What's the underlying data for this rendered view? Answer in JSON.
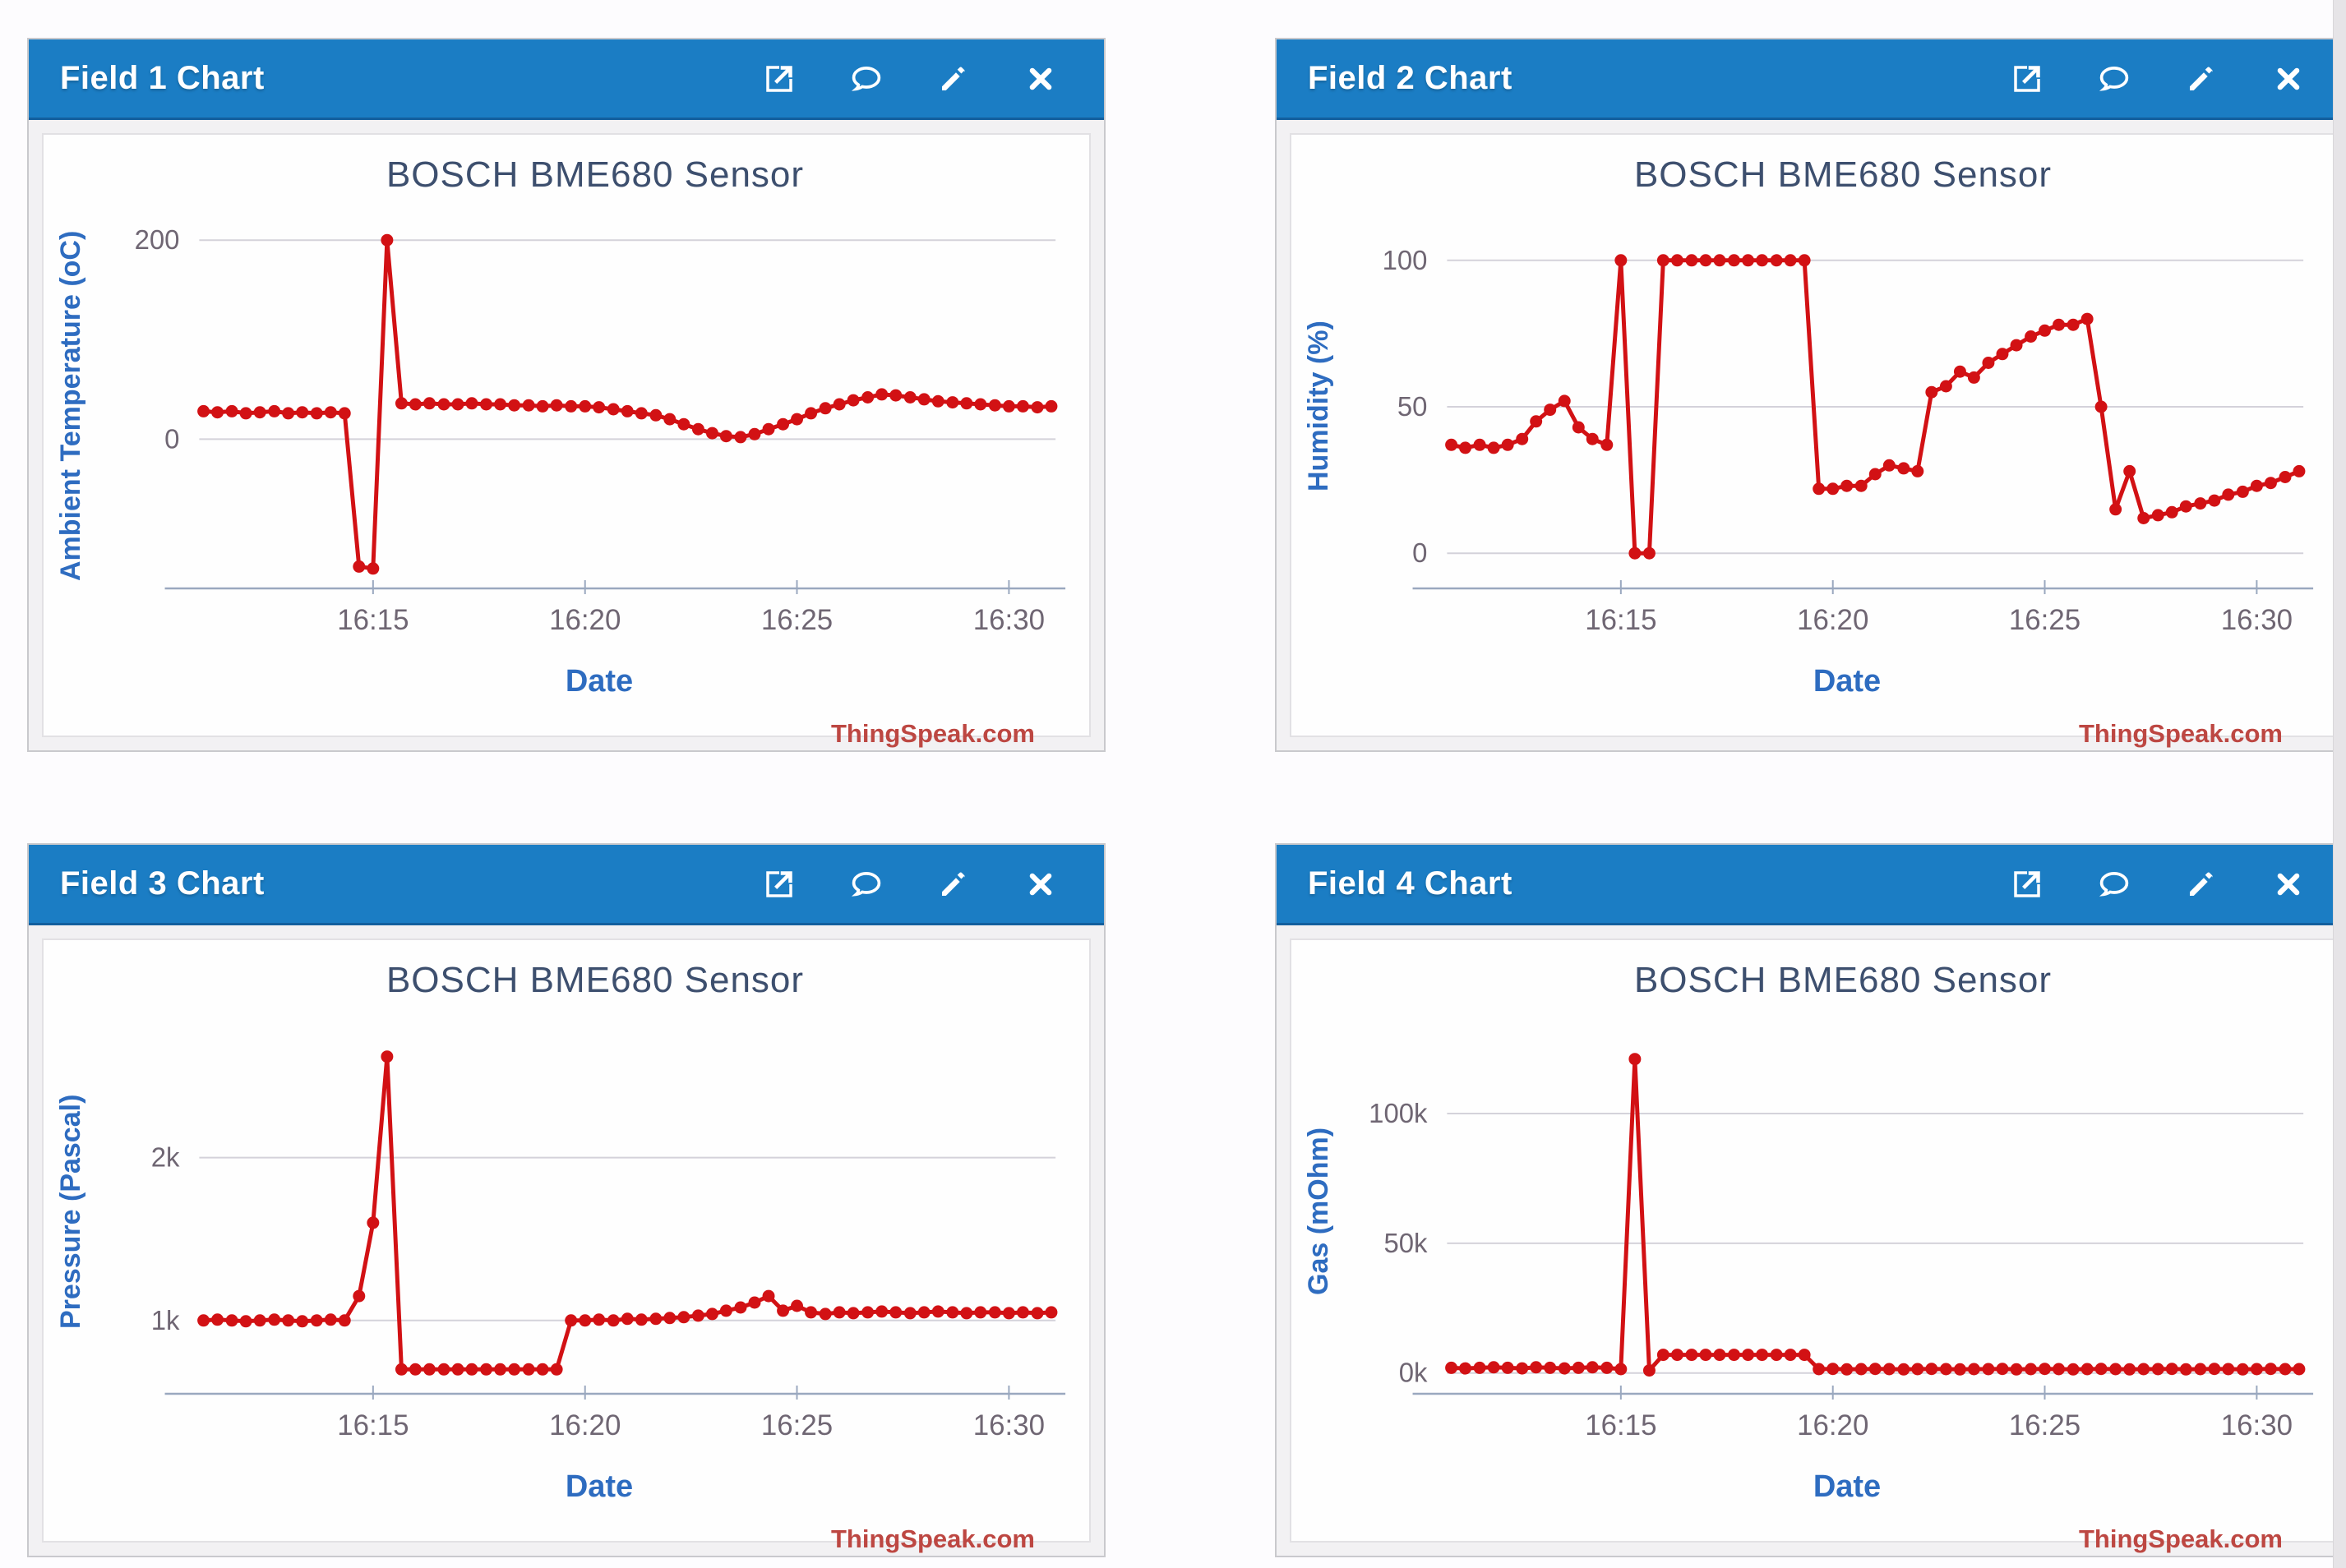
{
  "app": {
    "name": "ThingSpeak channel dashboard"
  },
  "colors": {
    "header_bg": "#1b7dc4",
    "header_border": "#135f9e",
    "series_red": "#d21114",
    "title": "#3d4f6e",
    "axis_label": "#2e6cc0",
    "tick_label": "#6f6673",
    "grid": "#d4d2da",
    "axis_line": "#9aa8bf",
    "watermark": "#bd4742",
    "panel_border": "#c9c9cd",
    "panel_bg": "#f2f1f3",
    "page_bg": "#fdfcfe"
  },
  "header_icons": [
    "open-external-icon",
    "comment-icon",
    "edit-icon",
    "close-icon"
  ],
  "panels": [
    {
      "header": "Field 1 Chart",
      "watermark": "ThingSpeak.com"
    },
    {
      "header": "Field 2 Chart",
      "watermark": "ThingSpeak.com"
    },
    {
      "header": "Field 3 Chart",
      "watermark": "ThingSpeak.com"
    },
    {
      "header": "Field 4 Chart",
      "watermark": "ThingSpeak.com"
    }
  ],
  "chart_data": [
    {
      "type": "line",
      "title": "BOSCH BME680 Sensor",
      "xlabel": "Date",
      "ylabel": "Ambient Temperature (oC)",
      "x_unit": "minutes after 16:00",
      "xlim": [
        10.9,
        31.1
      ],
      "ylim": [
        -150,
        215
      ],
      "grid": "horizontal-only",
      "legend": "none",
      "xticks": [
        {
          "v": 15,
          "label": "16:15"
        },
        {
          "v": 20,
          "label": "16:20"
        },
        {
          "v": 25,
          "label": "16:25"
        },
        {
          "v": 30,
          "label": "16:30"
        }
      ],
      "yticks": [
        {
          "v": 200,
          "label": "200"
        },
        {
          "v": 0,
          "label": "0"
        }
      ],
      "points": [
        [
          11,
          28
        ],
        [
          11.33,
          27
        ],
        [
          11.67,
          28
        ],
        [
          12,
          26
        ],
        [
          12.33,
          27
        ],
        [
          12.67,
          28
        ],
        [
          13,
          26
        ],
        [
          13.33,
          27
        ],
        [
          13.67,
          26
        ],
        [
          14,
          27
        ],
        [
          14.33,
          26
        ],
        [
          14.67,
          -128
        ],
        [
          15,
          -130
        ],
        [
          15.33,
          200
        ],
        [
          15.67,
          36
        ],
        [
          16,
          35
        ],
        [
          16.33,
          36
        ],
        [
          16.67,
          35
        ],
        [
          17,
          35
        ],
        [
          17.33,
          36
        ],
        [
          17.67,
          35
        ],
        [
          18,
          35
        ],
        [
          18.33,
          34
        ],
        [
          18.67,
          34
        ],
        [
          19,
          33
        ],
        [
          19.33,
          34
        ],
        [
          19.67,
          33
        ],
        [
          20,
          33
        ],
        [
          20.33,
          32
        ],
        [
          20.67,
          30
        ],
        [
          21,
          28
        ],
        [
          21.33,
          26
        ],
        [
          21.67,
          24
        ],
        [
          22,
          20
        ],
        [
          22.33,
          15
        ],
        [
          22.67,
          10
        ],
        [
          23,
          6
        ],
        [
          23.33,
          3
        ],
        [
          23.67,
          2
        ],
        [
          24,
          5
        ],
        [
          24.33,
          10
        ],
        [
          24.67,
          15
        ],
        [
          25,
          20
        ],
        [
          25.33,
          26
        ],
        [
          25.67,
          31
        ],
        [
          26,
          35
        ],
        [
          26.33,
          39
        ],
        [
          26.67,
          42
        ],
        [
          27,
          45
        ],
        [
          27.33,
          44
        ],
        [
          27.67,
          42
        ],
        [
          28,
          40
        ],
        [
          28.33,
          38
        ],
        [
          28.67,
          37
        ],
        [
          29,
          36
        ],
        [
          29.33,
          35
        ],
        [
          29.67,
          34
        ],
        [
          30,
          33
        ],
        [
          30.33,
          33
        ],
        [
          30.67,
          32
        ],
        [
          31,
          33
        ]
      ]
    },
    {
      "type": "line",
      "title": "BOSCH BME680 Sensor",
      "xlabel": "Date",
      "ylabel": "Humidity (%)",
      "x_unit": "minutes after 16:00",
      "xlim": [
        10.9,
        31.1
      ],
      "ylim": [
        -12,
        112
      ],
      "grid": "horizontal-only",
      "legend": "none",
      "xticks": [
        {
          "v": 15,
          "label": "16:15"
        },
        {
          "v": 20,
          "label": "16:20"
        },
        {
          "v": 25,
          "label": "16:25"
        },
        {
          "v": 30,
          "label": "16:30"
        }
      ],
      "yticks": [
        {
          "v": 100,
          "label": "100"
        },
        {
          "v": 50,
          "label": "50"
        },
        {
          "v": 0,
          "label": "0"
        }
      ],
      "points": [
        [
          11,
          37
        ],
        [
          11.33,
          36
        ],
        [
          11.67,
          37
        ],
        [
          12,
          36
        ],
        [
          12.33,
          37
        ],
        [
          12.67,
          39
        ],
        [
          13,
          45
        ],
        [
          13.33,
          49
        ],
        [
          13.67,
          52
        ],
        [
          14,
          43
        ],
        [
          14.33,
          39
        ],
        [
          14.67,
          37
        ],
        [
          15,
          100
        ],
        [
          15.33,
          0
        ],
        [
          15.67,
          0
        ],
        [
          16,
          100
        ],
        [
          16.33,
          100
        ],
        [
          16.67,
          100
        ],
        [
          17,
          100
        ],
        [
          17.33,
          100
        ],
        [
          17.67,
          100
        ],
        [
          18,
          100
        ],
        [
          18.33,
          100
        ],
        [
          18.67,
          100
        ],
        [
          19,
          100
        ],
        [
          19.33,
          100
        ],
        [
          19.67,
          22
        ],
        [
          20,
          22
        ],
        [
          20.33,
          23
        ],
        [
          20.67,
          23
        ],
        [
          21,
          27
        ],
        [
          21.33,
          30
        ],
        [
          21.67,
          29
        ],
        [
          22,
          28
        ],
        [
          22.33,
          55
        ],
        [
          22.67,
          57
        ],
        [
          23,
          62
        ],
        [
          23.33,
          60
        ],
        [
          23.67,
          65
        ],
        [
          24,
          68
        ],
        [
          24.33,
          71
        ],
        [
          24.67,
          74
        ],
        [
          25,
          76
        ],
        [
          25.33,
          78
        ],
        [
          25.67,
          78
        ],
        [
          26,
          80
        ],
        [
          26.33,
          50
        ],
        [
          26.67,
          15
        ],
        [
          27,
          28
        ],
        [
          27.33,
          12
        ],
        [
          27.67,
          13
        ],
        [
          28,
          14
        ],
        [
          28.33,
          16
        ],
        [
          28.67,
          17
        ],
        [
          29,
          18
        ],
        [
          29.33,
          20
        ],
        [
          29.67,
          21
        ],
        [
          30,
          23
        ],
        [
          30.33,
          24
        ],
        [
          30.67,
          26
        ],
        [
          31,
          28
        ]
      ]
    },
    {
      "type": "line",
      "title": "BOSCH BME680 Sensor",
      "xlabel": "Date",
      "ylabel": "Pressure (Pascal)",
      "x_unit": "minutes after 16:00",
      "xlim": [
        10.9,
        31.1
      ],
      "ylim": [
        550,
        2780
      ],
      "grid": "horizontal-only",
      "legend": "none",
      "xticks": [
        {
          "v": 15,
          "label": "16:15"
        },
        {
          "v": 20,
          "label": "16:20"
        },
        {
          "v": 25,
          "label": "16:25"
        },
        {
          "v": 30,
          "label": "16:30"
        }
      ],
      "yticks": [
        {
          "v": 2000,
          "label": "2k"
        },
        {
          "v": 1000,
          "label": "1k"
        }
      ],
      "points": [
        [
          11,
          1000
        ],
        [
          11.33,
          1005
        ],
        [
          11.67,
          1000
        ],
        [
          12,
          995
        ],
        [
          12.33,
          1000
        ],
        [
          12.67,
          1005
        ],
        [
          13,
          1000
        ],
        [
          13.33,
          995
        ],
        [
          13.67,
          1000
        ],
        [
          14,
          1005
        ],
        [
          14.33,
          1000
        ],
        [
          14.67,
          1150
        ],
        [
          15,
          1600
        ],
        [
          15.33,
          2620
        ],
        [
          15.67,
          700
        ],
        [
          16,
          700
        ],
        [
          16.33,
          700
        ],
        [
          16.67,
          700
        ],
        [
          17,
          700
        ],
        [
          17.33,
          700
        ],
        [
          17.67,
          700
        ],
        [
          18,
          700
        ],
        [
          18.33,
          700
        ],
        [
          18.67,
          700
        ],
        [
          19,
          700
        ],
        [
          19.33,
          700
        ],
        [
          19.67,
          1000
        ],
        [
          20,
          1000
        ],
        [
          20.33,
          1005
        ],
        [
          20.67,
          1000
        ],
        [
          21,
          1010
        ],
        [
          21.33,
          1005
        ],
        [
          21.67,
          1010
        ],
        [
          22,
          1015
        ],
        [
          22.33,
          1020
        ],
        [
          22.67,
          1030
        ],
        [
          23,
          1040
        ],
        [
          23.33,
          1060
        ],
        [
          23.67,
          1080
        ],
        [
          24,
          1110
        ],
        [
          24.33,
          1150
        ],
        [
          24.67,
          1060
        ],
        [
          25,
          1090
        ],
        [
          25.33,
          1050
        ],
        [
          25.67,
          1040
        ],
        [
          26,
          1050
        ],
        [
          26.33,
          1045
        ],
        [
          26.67,
          1050
        ],
        [
          27,
          1055
        ],
        [
          27.33,
          1050
        ],
        [
          27.67,
          1045
        ],
        [
          28,
          1050
        ],
        [
          28.33,
          1055
        ],
        [
          28.67,
          1050
        ],
        [
          29,
          1045
        ],
        [
          29.33,
          1050
        ],
        [
          29.67,
          1050
        ],
        [
          30,
          1045
        ],
        [
          30.33,
          1050
        ],
        [
          30.67,
          1045
        ],
        [
          31,
          1050
        ]
      ]
    },
    {
      "type": "line",
      "title": "BOSCH BME680 Sensor",
      "xlabel": "Date",
      "ylabel": "Gas (mOhm)",
      "x_unit": "minutes after 16:00",
      "xlim": [
        10.9,
        31.1
      ],
      "ylim": [
        -8000,
        132000
      ],
      "grid": "horizontal-only",
      "legend": "none",
      "xticks": [
        {
          "v": 15,
          "label": "16:15"
        },
        {
          "v": 20,
          "label": "16:20"
        },
        {
          "v": 25,
          "label": "16:25"
        },
        {
          "v": 30,
          "label": "16:30"
        }
      ],
      "yticks": [
        {
          "v": 100000,
          "label": "100k"
        },
        {
          "v": 50000,
          "label": "50k"
        },
        {
          "v": 0,
          "label": "0k"
        }
      ],
      "points": [
        [
          11,
          2000
        ],
        [
          11.33,
          1800
        ],
        [
          11.67,
          2000
        ],
        [
          12,
          2200
        ],
        [
          12.33,
          2000
        ],
        [
          12.67,
          1800
        ],
        [
          13,
          2200
        ],
        [
          13.33,
          2000
        ],
        [
          13.67,
          1800
        ],
        [
          14,
          2000
        ],
        [
          14.33,
          2200
        ],
        [
          14.67,
          2000
        ],
        [
          15,
          1500
        ],
        [
          15.33,
          121000
        ],
        [
          15.67,
          1000
        ],
        [
          16,
          7000
        ],
        [
          16.33,
          7000
        ],
        [
          16.67,
          7000
        ],
        [
          17,
          7000
        ],
        [
          17.33,
          7000
        ],
        [
          17.67,
          7000
        ],
        [
          18,
          7000
        ],
        [
          18.33,
          7000
        ],
        [
          18.67,
          7000
        ],
        [
          19,
          7000
        ],
        [
          19.33,
          7000
        ],
        [
          19.67,
          1500
        ],
        [
          20,
          1600
        ],
        [
          20.33,
          1400
        ],
        [
          20.67,
          1500
        ],
        [
          21,
          1600
        ],
        [
          21.33,
          1500
        ],
        [
          21.67,
          1400
        ],
        [
          22,
          1500
        ],
        [
          22.33,
          1600
        ],
        [
          22.67,
          1500
        ],
        [
          23,
          1400
        ],
        [
          23.33,
          1500
        ],
        [
          23.67,
          1500
        ],
        [
          24,
          1600
        ],
        [
          24.33,
          1400
        ],
        [
          24.67,
          1500
        ],
        [
          25,
          1600
        ],
        [
          25.33,
          1500
        ],
        [
          25.67,
          1400
        ],
        [
          26,
          1500
        ],
        [
          26.33,
          1600
        ],
        [
          26.67,
          1500
        ],
        [
          27,
          1400
        ],
        [
          27.33,
          1500
        ],
        [
          27.67,
          1500
        ],
        [
          28,
          1600
        ],
        [
          28.33,
          1400
        ],
        [
          28.67,
          1500
        ],
        [
          29,
          1600
        ],
        [
          29.33,
          1500
        ],
        [
          29.67,
          1400
        ],
        [
          30,
          1500
        ],
        [
          30.33,
          1600
        ],
        [
          30.67,
          1500
        ],
        [
          31,
          1500
        ]
      ]
    }
  ]
}
